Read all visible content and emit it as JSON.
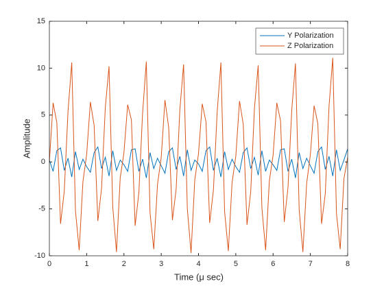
{
  "chart_data": {
    "type": "line",
    "xlabel": "Time  (μ  sec)",
    "ylabel": "Amplitude",
    "x": [
      0,
      0.1,
      0.2,
      0.3,
      0.4,
      0.5,
      0.6,
      0.7,
      0.8,
      0.9,
      1,
      1.1,
      1.2,
      1.3,
      1.4,
      1.5,
      1.6,
      1.7,
      1.8,
      1.9,
      2,
      2.1,
      2.2,
      2.3,
      2.4,
      2.5,
      2.6,
      2.7,
      2.8,
      2.9,
      3,
      3.1,
      3.2,
      3.3,
      3.4,
      3.5,
      3.6,
      3.7,
      3.8,
      3.9,
      4,
      4.1,
      4.2,
      4.3,
      4.4,
      4.5,
      4.6,
      4.7,
      4.8,
      4.9,
      5,
      5.1,
      5.2,
      5.3,
      5.4,
      5.5,
      5.6,
      5.7,
      5.8,
      5.9,
      6,
      6.1,
      6.2,
      6.3,
      6.4,
      6.5,
      6.6,
      6.7,
      6.8,
      6.9,
      7,
      7.1,
      7.2,
      7.3,
      7.4,
      7.5,
      7.6,
      7.7,
      7.8,
      7.9,
      8
    ],
    "series": [
      {
        "name": "Y Polarization",
        "color": "#0072bd",
        "values": [
          0.2,
          -1.0,
          1.2,
          1.5,
          -0.9,
          0.4,
          -1.6,
          1.1,
          -0.8,
          0.3,
          -0.5,
          -1.1,
          1.0,
          1.6,
          -0.7,
          0.5,
          -1.5,
          1.2,
          -0.9,
          0.2,
          -0.3,
          -1.0,
          1.3,
          1.4,
          -1.0,
          0.3,
          -1.7,
          1.0,
          -0.7,
          0.4,
          -0.4,
          -1.2,
          1.1,
          1.5,
          -0.8,
          0.6,
          -1.5,
          1.3,
          -0.9,
          0.2,
          -0.2,
          -1.0,
          1.2,
          1.6,
          -0.9,
          0.4,
          -1.6,
          1.1,
          -0.8,
          0.3,
          -0.5,
          -1.1,
          1.0,
          1.5,
          -0.7,
          0.5,
          -1.4,
          1.2,
          -1.0,
          0.2,
          -0.3,
          -0.9,
          1.3,
          1.4,
          -1.0,
          0.3,
          -1.7,
          1.0,
          -0.7,
          0.4,
          -0.4,
          -1.2,
          1.1,
          1.6,
          -0.8,
          0.6,
          -1.5,
          1.3,
          -0.9,
          0.2,
          1.4
        ]
      },
      {
        "name": "Z Polarization",
        "color": "#d95319",
        "values": [
          0,
          6.3,
          4.2,
          -6.6,
          -3.1,
          5.4,
          10.6,
          -5.2,
          -9.4,
          -2.1,
          0.8,
          6.4,
          3.9,
          -6.3,
          -2.8,
          5.8,
          10.2,
          -4.8,
          -9.6,
          -1.7,
          1.0,
          6.1,
          4.5,
          -6.8,
          -3.3,
          5.2,
          10.7,
          -5.4,
          -9.3,
          -2.4,
          0.5,
          6.6,
          3.7,
          -6.2,
          -2.9,
          5.6,
          10.4,
          -5.0,
          -9.7,
          -1.9,
          0.9,
          6.2,
          4.3,
          -6.5,
          -3.0,
          5.3,
          10.6,
          -5.3,
          -9.5,
          -2.2,
          0.6,
          6.5,
          4.0,
          -6.7,
          -3.2,
          5.7,
          10.3,
          -4.9,
          -9.4,
          -2.0,
          0.7,
          6.3,
          4.4,
          -6.4,
          -2.7,
          5.5,
          10.5,
          -5.1,
          -9.6,
          -2.3,
          0.8,
          6.0,
          4.1,
          -6.6,
          -3.4,
          5.9,
          11.1,
          -5.5,
          -9.3,
          -1.8,
          0.5
        ]
      }
    ],
    "xlim": [
      0,
      8
    ],
    "xticks": [
      0,
      1,
      2,
      3,
      4,
      5,
      6,
      7,
      8
    ],
    "ylim": [
      -10,
      15
    ],
    "yticks": [
      -10,
      -5,
      0,
      5,
      10,
      15
    ],
    "legend": "upper-right"
  }
}
